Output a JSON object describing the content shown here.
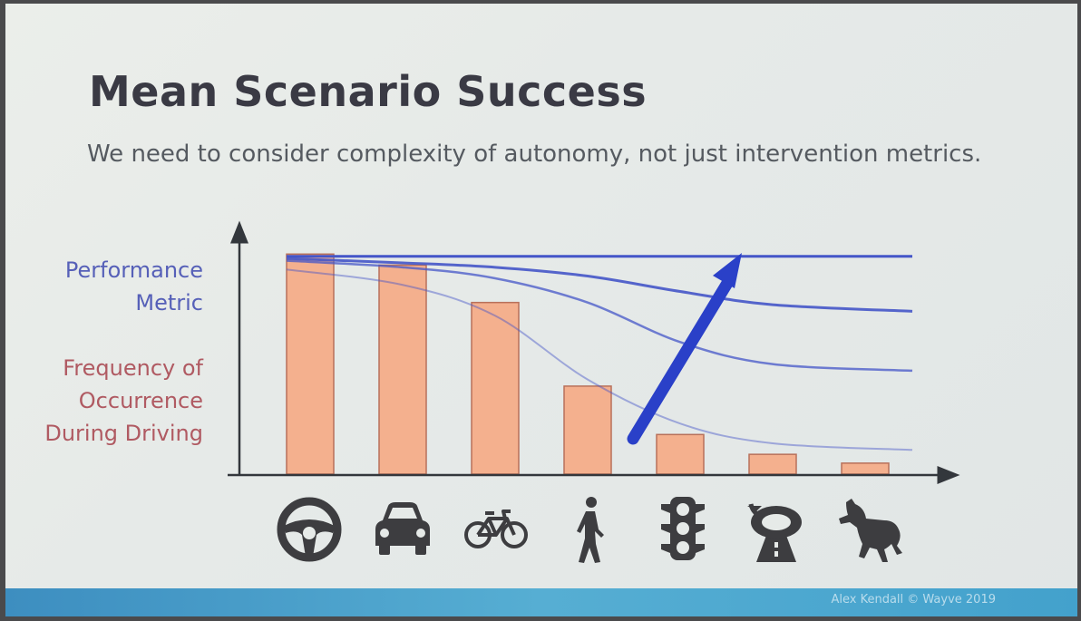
{
  "slide": {
    "title": "Mean Scenario Success",
    "subtitle": "We need to consider complexity of autonomy, not just intervention metrics.",
    "performance_label_line1": "Performance",
    "performance_label_line2": "Metric",
    "frequency_label_line1": "Frequency of",
    "frequency_label_line2": "Occurrence",
    "frequency_label_line3": "During Driving",
    "footer_credit": "Alex Kendall © Wayve 2019"
  },
  "colors": {
    "bar_fill": "#f4b08e",
    "bar_stroke": "#b8705a",
    "axis": "#33373c",
    "curve": "#4455c8",
    "arrow": "#2a40c8",
    "icon": "#3d3d40",
    "footer": "#4aa5cf"
  },
  "icons": [
    "steering-wheel-icon",
    "car-icon",
    "bicycle-icon",
    "pedestrian-icon",
    "traffic-light-icon",
    "roundabout-icon",
    "horse-icon"
  ],
  "chart_data": {
    "type": "bar",
    "categories": [
      "steering-wheel",
      "car",
      "bicycle",
      "pedestrian",
      "traffic-light",
      "roundabout",
      "horse"
    ],
    "values": [
      100,
      95,
      78,
      40,
      18,
      9,
      5
    ],
    "ylim": [
      0,
      110
    ],
    "line_series": [
      {
        "values": [
          99,
          99,
          99,
          99,
          99,
          99,
          99
        ]
      },
      {
        "values": [
          98,
          96,
          94,
          90,
          83,
          77,
          74
        ]
      },
      {
        "values": [
          97,
          94,
          89,
          78,
          60,
          50,
          47
        ]
      },
      {
        "values": [
          93,
          86,
          72,
          43,
          23,
          14,
          11
        ]
      }
    ],
    "grid": false,
    "legend": "none",
    "annotation": "upward-arrow"
  }
}
